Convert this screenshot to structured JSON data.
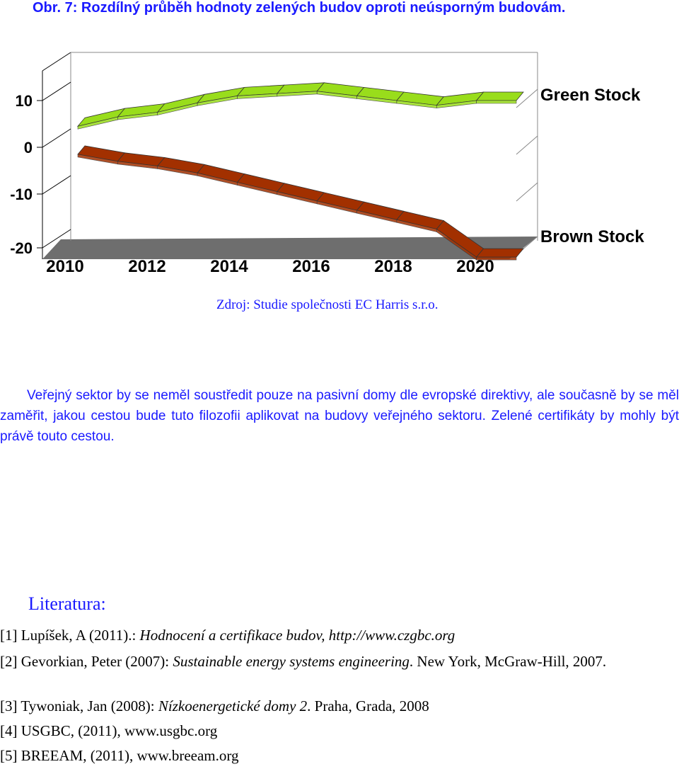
{
  "caption": "Obr. 7:  Rozdílný průběh hodnoty zelených budov oproti neúsporným budovám.",
  "chart_data": {
    "type": "line",
    "x": [
      2010,
      2011,
      2012,
      2013,
      2014,
      2015,
      2016,
      2017,
      2018,
      2019,
      2020,
      2021
    ],
    "series": [
      {
        "name": "Green Stock",
        "values": [
          4.5,
          6.5,
          7.5,
          9.5,
          11.0,
          11.5,
          12.0,
          11.0,
          10.0,
          9.0,
          10.0,
          10.0
        ]
      },
      {
        "name": "Brown Stock",
        "values": [
          -1.5,
          -3.0,
          -4.0,
          -5.5,
          -7.5,
          -9.5,
          -11.5,
          -13.5,
          -15.5,
          -17.5,
          -23.5,
          -23.5
        ]
      }
    ],
    "y_ticks": [
      "10",
      "0",
      "-10",
      "-20"
    ],
    "x_ticks": [
      "2010",
      "2012",
      "2014",
      "2016",
      "2018",
      "2020"
    ],
    "ylim": [
      -20,
      15
    ],
    "colors": {
      "green": "#99dd1b",
      "brown": "#a23000",
      "floor": "#6e6e6e"
    }
  },
  "source": "Zdroj: Studie společnosti EC Harris s.r.o.",
  "paragraph": "Veřejný sektor by se neměl soustředit pouze na pasivní domy dle evropské direktivy, ale současně by se měl zaměřit, jakou cestou bude tuto filozofii aplikovat na budovy veřejného sektoru. Zelené certifikáty by mohly být právě touto cestou.",
  "literature": {
    "heading": "Literatura:",
    "refs": [
      {
        "num": "[1] Lupíšek, A (2011).: ",
        "title": "Hodnocení a certifikace budov, http://www.czgbc.org",
        "rest": ""
      },
      {
        "num": "[2] Gevorkian, Peter (2007): ",
        "title": "Sustainable energy systems engineering",
        "rest": ". New York, McGraw-Hill, 2007."
      },
      {
        "num": "[3] Tywoniak, Jan (2008): ",
        "title": "Nízkoenergetické domy 2",
        "rest": ". Praha, Grada, 2008"
      },
      {
        "num": "[4] USGBC, (2011), www.usgbc.org",
        "title": "",
        "rest": ""
      },
      {
        "num": "[5] BREEAM, (2011), www.breeam.org",
        "title": "",
        "rest": ""
      }
    ]
  }
}
